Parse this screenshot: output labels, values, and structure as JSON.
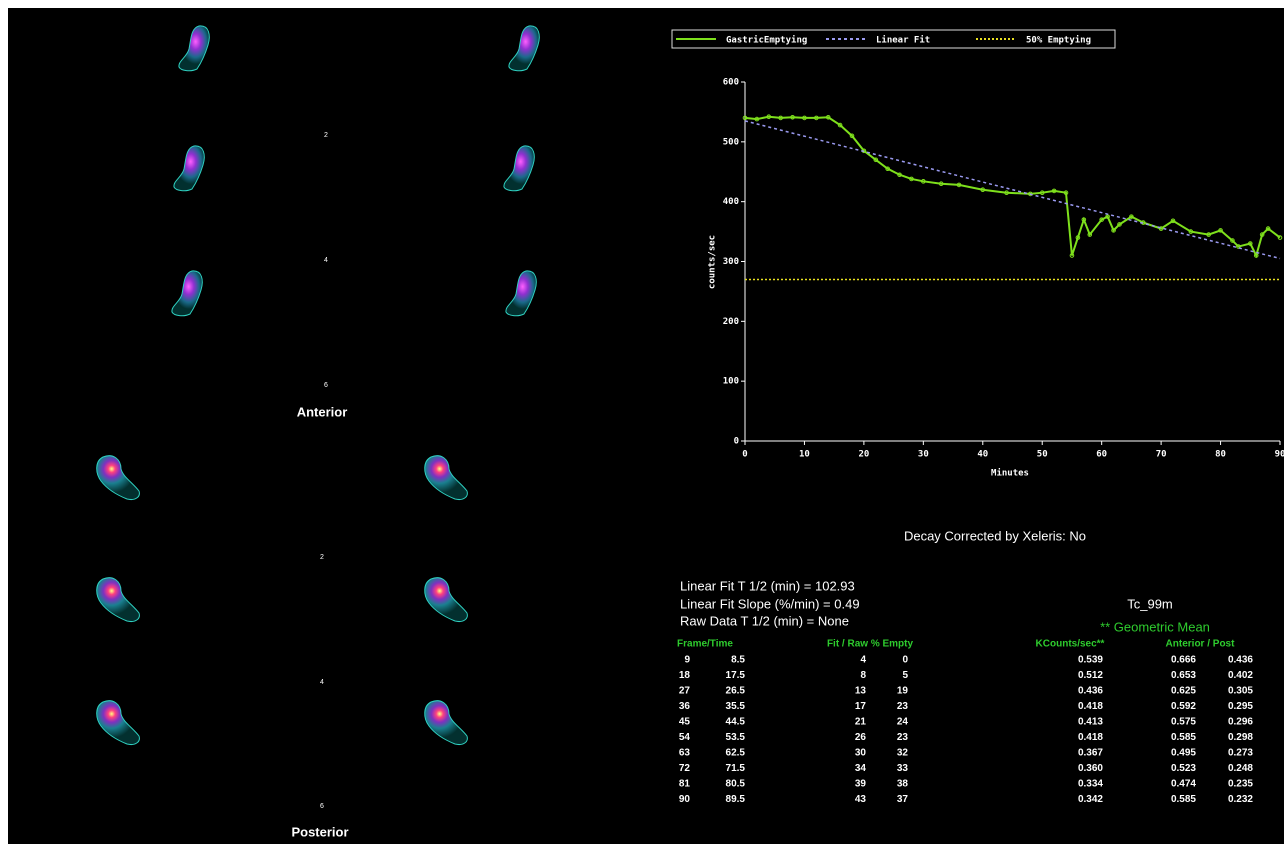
{
  "chart_data": {
    "type": "line",
    "x_label": "Minutes",
    "y_label": "counts/sec",
    "xlim": [
      0,
      90
    ],
    "ylim": [
      0,
      600
    ],
    "xticks": [
      0,
      10,
      20,
      30,
      40,
      50,
      60,
      70,
      80,
      90
    ],
    "yticks": [
      0,
      100,
      200,
      300,
      400,
      500,
      600
    ],
    "series": [
      {
        "name": "GastricEmptying",
        "color": "#7ee01c",
        "x": [
          0,
          2,
          4,
          6,
          8,
          10,
          12,
          14,
          16,
          18,
          20,
          22,
          24,
          26,
          28,
          30,
          33,
          36,
          40,
          44,
          48,
          50,
          52,
          54,
          55,
          56,
          57,
          58,
          60,
          61,
          62,
          63,
          65,
          67,
          70,
          72,
          75,
          78,
          80,
          82,
          83,
          85,
          86,
          87,
          88,
          90
        ],
        "values": [
          540,
          538,
          542,
          540,
          541,
          540,
          540,
          541,
          528,
          510,
          485,
          470,
          455,
          445,
          438,
          434,
          430,
          428,
          420,
          415,
          413,
          415,
          418,
          415,
          310,
          340,
          370,
          345,
          370,
          375,
          352,
          362,
          375,
          365,
          355,
          368,
          350,
          345,
          352,
          335,
          325,
          330,
          310,
          345,
          355,
          340
        ]
      },
      {
        "name": "Linear Fit",
        "color": "#9a9af0",
        "x": [
          0,
          90
        ],
        "values": [
          535,
          305
        ]
      },
      {
        "name": "50% Emptying",
        "color": "#e8e020",
        "x": [
          0,
          90
        ],
        "values": [
          270,
          270
        ]
      }
    ]
  },
  "anterior": {
    "title": "Anterior",
    "labels": [
      "2",
      "4",
      "6"
    ]
  },
  "posterior": {
    "title": "Posterior",
    "labels": [
      "2",
      "4",
      "6"
    ]
  },
  "decay_note": "Decay Corrected by Xeleris: No",
  "stats": [
    "Linear Fit T 1/2 (min) = 102.93",
    "Linear Fit Slope (%/min) = 0.49",
    "Raw Data T 1/2 (min) = None"
  ],
  "isotope": "Tc_99m",
  "geometric_mean": "** Geometric Mean",
  "table": {
    "headers": [
      "Frame/Time",
      "Fit / Raw % Empty",
      "KCounts/sec**",
      "Anterior / Post"
    ],
    "rows": [
      [
        "9",
        "8.5",
        "4",
        "0",
        "0.539",
        "0.666",
        "0.436"
      ],
      [
        "18",
        "17.5",
        "8",
        "5",
        "0.512",
        "0.653",
        "0.402"
      ],
      [
        "27",
        "26.5",
        "13",
        "19",
        "0.436",
        "0.625",
        "0.305"
      ],
      [
        "36",
        "35.5",
        "17",
        "23",
        "0.418",
        "0.592",
        "0.295"
      ],
      [
        "45",
        "44.5",
        "21",
        "24",
        "0.413",
        "0.575",
        "0.296"
      ],
      [
        "54",
        "53.5",
        "26",
        "23",
        "0.418",
        "0.585",
        "0.298"
      ],
      [
        "63",
        "62.5",
        "30",
        "32",
        "0.367",
        "0.495",
        "0.273"
      ],
      [
        "72",
        "71.5",
        "34",
        "33",
        "0.360",
        "0.523",
        "0.248"
      ],
      [
        "81",
        "80.5",
        "39",
        "38",
        "0.334",
        "0.474",
        "0.235"
      ],
      [
        "90",
        "89.5",
        "43",
        "37",
        "0.342",
        "0.585",
        "0.232"
      ]
    ]
  }
}
